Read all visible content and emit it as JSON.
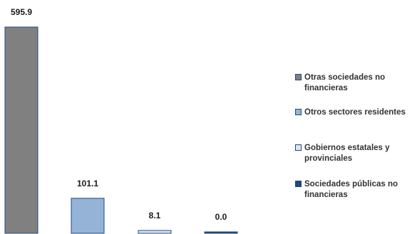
{
  "chart_data": {
    "type": "bar",
    "categories": [
      "Otras sociedades no financieras",
      "Otros sectores residentes",
      "Gobiernos estatales y provinciales",
      "Sociedades públicas no financieras"
    ],
    "values": [
      595.9,
      101.1,
      8.1,
      0.0
    ],
    "value_labels": [
      "595.9",
      "101.1",
      "8.1",
      "0.0"
    ],
    "colors": {
      "fill": [
        "#808080",
        "#95b3d7",
        "#dce6f2",
        "#1f497d"
      ],
      "stroke": "#1f497d"
    },
    "legend": {
      "position": "right",
      "entries": [
        {
          "label": "Otras sociedades no financieras",
          "color": "#808080"
        },
        {
          "label": "Otros sectores residentes",
          "color": "#95b3d7"
        },
        {
          "label": "Gobiernos estatales y provinciales",
          "color": "#dce6f2"
        },
        {
          "label": "Sociedades públicas no financieras",
          "color": "#1f497d"
        }
      ]
    },
    "ylim": [
      0,
      595.9
    ],
    "grid": false,
    "axes_visible": false
  }
}
